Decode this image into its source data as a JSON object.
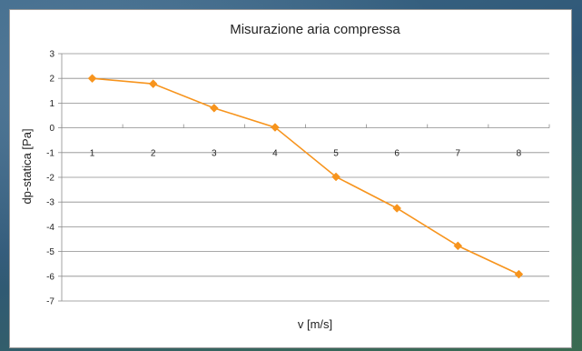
{
  "chart_data": {
    "type": "line",
    "title": "Misurazione aria compressa",
    "xlabel": "v [m/s]",
    "ylabel": "dp-statica [Pa]",
    "x": [
      1,
      2,
      3,
      4,
      5,
      6,
      7,
      8
    ],
    "x_tick_labels": [
      "1",
      "2",
      "3",
      "4",
      "5",
      "6",
      "7",
      "8"
    ],
    "ylim": [
      -7,
      3
    ],
    "y_ticks": [
      3,
      2,
      1,
      0,
      -1,
      -2,
      -3,
      -4,
      -5,
      -6,
      -7
    ],
    "y_tick_labels": [
      "3",
      "2",
      "1",
      "0",
      "-1",
      "-2",
      "-3",
      "-4",
      "-5",
      "-6",
      "-7"
    ],
    "grid": "horizontal",
    "legend": "none",
    "series": [
      {
        "values": [
          2.0,
          1.78,
          0.8,
          0.02,
          -1.98,
          -3.25,
          -4.77,
          -5.92
        ],
        "color": "#F7941D",
        "marker": "diamond"
      }
    ]
  }
}
